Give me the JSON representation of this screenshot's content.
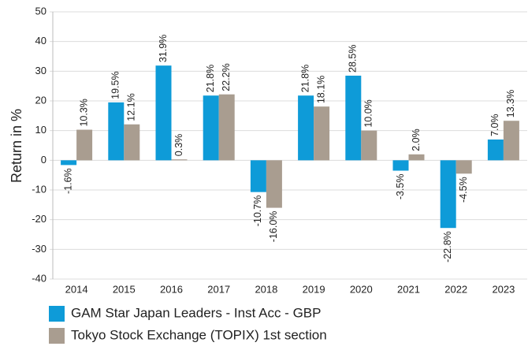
{
  "chart_data": {
    "type": "bar",
    "y_label": "Return in %",
    "categories": [
      "2014",
      "2015",
      "2016",
      "2017",
      "2018",
      "2019",
      "2020",
      "2021",
      "2022",
      "2023"
    ],
    "series": [
      {
        "name": "GAM Star Japan Leaders - Inst Acc - GBP",
        "color": "#0e9bd8",
        "values": [
          -1.6,
          19.5,
          31.9,
          21.8,
          -10.7,
          21.8,
          28.5,
          -3.5,
          -22.8,
          7.0
        ],
        "value_labels": [
          "-1.6%",
          "19.5%",
          "31.9%",
          "21.8%",
          "-10.7%",
          "21.8%",
          "28.5%",
          "-3.5%",
          "-22.8%",
          "7.0%"
        ]
      },
      {
        "name": "Tokyo Stock Exchange (TOPIX) 1st section",
        "color": "#a99d90",
        "values": [
          10.3,
          12.1,
          0.3,
          22.2,
          -16.0,
          18.1,
          10.0,
          2.0,
          -4.5,
          13.3
        ],
        "value_labels": [
          "10.3%",
          "12.1%",
          "0.3%",
          "22.2%",
          "-16.0%",
          "18.1%",
          "10.0%",
          "2.0%",
          "-4.5%",
          "13.3%"
        ]
      }
    ],
    "ylim": [
      -40,
      50
    ],
    "yticks": [
      -40,
      -30,
      -20,
      -10,
      0,
      10,
      20,
      30,
      40,
      50
    ],
    "grid": true
  }
}
